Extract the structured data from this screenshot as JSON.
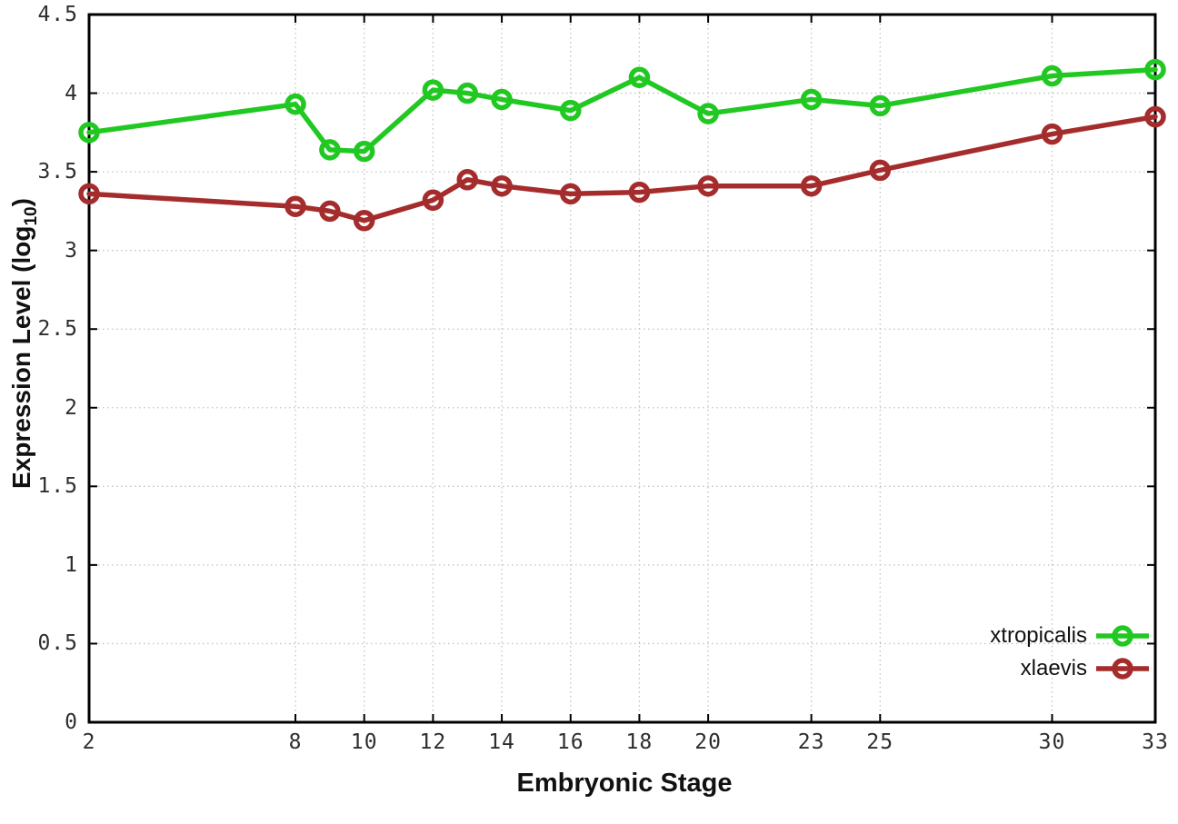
{
  "figure": {
    "background": "#ffffff"
  },
  "chart_data": {
    "type": "line",
    "title": "",
    "xlabel": "Embryonic Stage",
    "ylabel": "Expression Level (log10)",
    "ylabel_parts": {
      "prefix": "Expression Level (log",
      "sub": "10",
      "suffix": ")"
    },
    "x": [
      2,
      8,
      9,
      10,
      12,
      13,
      14,
      16,
      18,
      20,
      23,
      25,
      30,
      33
    ],
    "series": [
      {
        "name": "xtropicalis",
        "color": "#22c822",
        "marker": "open-circle",
        "values": [
          3.75,
          3.93,
          3.64,
          3.63,
          4.02,
          4.0,
          3.96,
          3.89,
          4.1,
          3.87,
          3.96,
          3.92,
          4.11,
          4.15
        ]
      },
      {
        "name": "xlaevis",
        "color": "#a52c2c",
        "marker": "open-circle",
        "values": [
          3.36,
          3.28,
          3.25,
          3.19,
          3.32,
          3.45,
          3.41,
          3.36,
          3.37,
          3.41,
          3.41,
          3.51,
          3.74,
          3.85
        ]
      }
    ],
    "xlim": [
      2,
      33
    ],
    "ylim": [
      0,
      4.5
    ],
    "xticks": [
      2,
      8,
      10,
      12,
      14,
      16,
      18,
      20,
      23,
      25,
      30,
      33
    ],
    "yticks": [
      0,
      0.5,
      1,
      1.5,
      2,
      2.5,
      3,
      3.5,
      4,
      4.5
    ],
    "grid": true,
    "legend_position": "inside-bottom-right",
    "colors": {
      "grid": "#c2c2c2",
      "axis": "#000000",
      "tick_text": "#2e2e2e"
    }
  }
}
